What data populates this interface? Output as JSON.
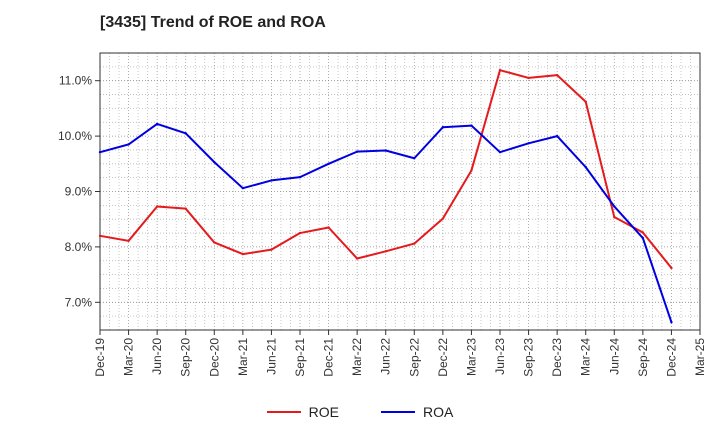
{
  "chart_data": {
    "type": "line",
    "title": "[3435]  Trend of ROE and ROA",
    "xlabel": "",
    "ylabel": "",
    "categories": [
      "Dec-19",
      "Mar-20",
      "Jun-20",
      "Sep-20",
      "Dec-20",
      "Mar-21",
      "Jun-21",
      "Sep-21",
      "Dec-21",
      "Mar-22",
      "Jun-22",
      "Sep-22",
      "Dec-22",
      "Mar-23",
      "Jun-23",
      "Sep-23",
      "Dec-23",
      "Mar-24",
      "Jun-24",
      "Sep-24",
      "Dec-24",
      "Mar-25"
    ],
    "ylim": [
      6.5,
      11.5
    ],
    "yticks": [
      7.0,
      8.0,
      9.0,
      10.0,
      11.0
    ],
    "ytick_labels": [
      "7.0%",
      "8.0%",
      "9.0%",
      "10.0%",
      "11.0%"
    ],
    "grid": true,
    "legend_position": "bottom",
    "series": [
      {
        "name": "ROE",
        "color": "#e41a1c",
        "values": [
          8.2,
          8.11,
          8.73,
          8.69,
          8.08,
          7.87,
          7.95,
          8.25,
          8.35,
          7.79,
          7.92,
          8.06,
          8.51,
          9.38,
          11.19,
          11.05,
          11.1,
          10.62,
          8.54,
          8.26,
          7.62,
          null
        ]
      },
      {
        "name": "ROA",
        "color": "#0000e0",
        "values": [
          9.71,
          9.85,
          10.22,
          10.05,
          9.53,
          9.06,
          9.2,
          9.26,
          9.5,
          9.72,
          9.74,
          9.6,
          10.16,
          10.19,
          9.71,
          9.87,
          10.0,
          9.44,
          8.73,
          8.16,
          6.64,
          null
        ]
      }
    ]
  }
}
